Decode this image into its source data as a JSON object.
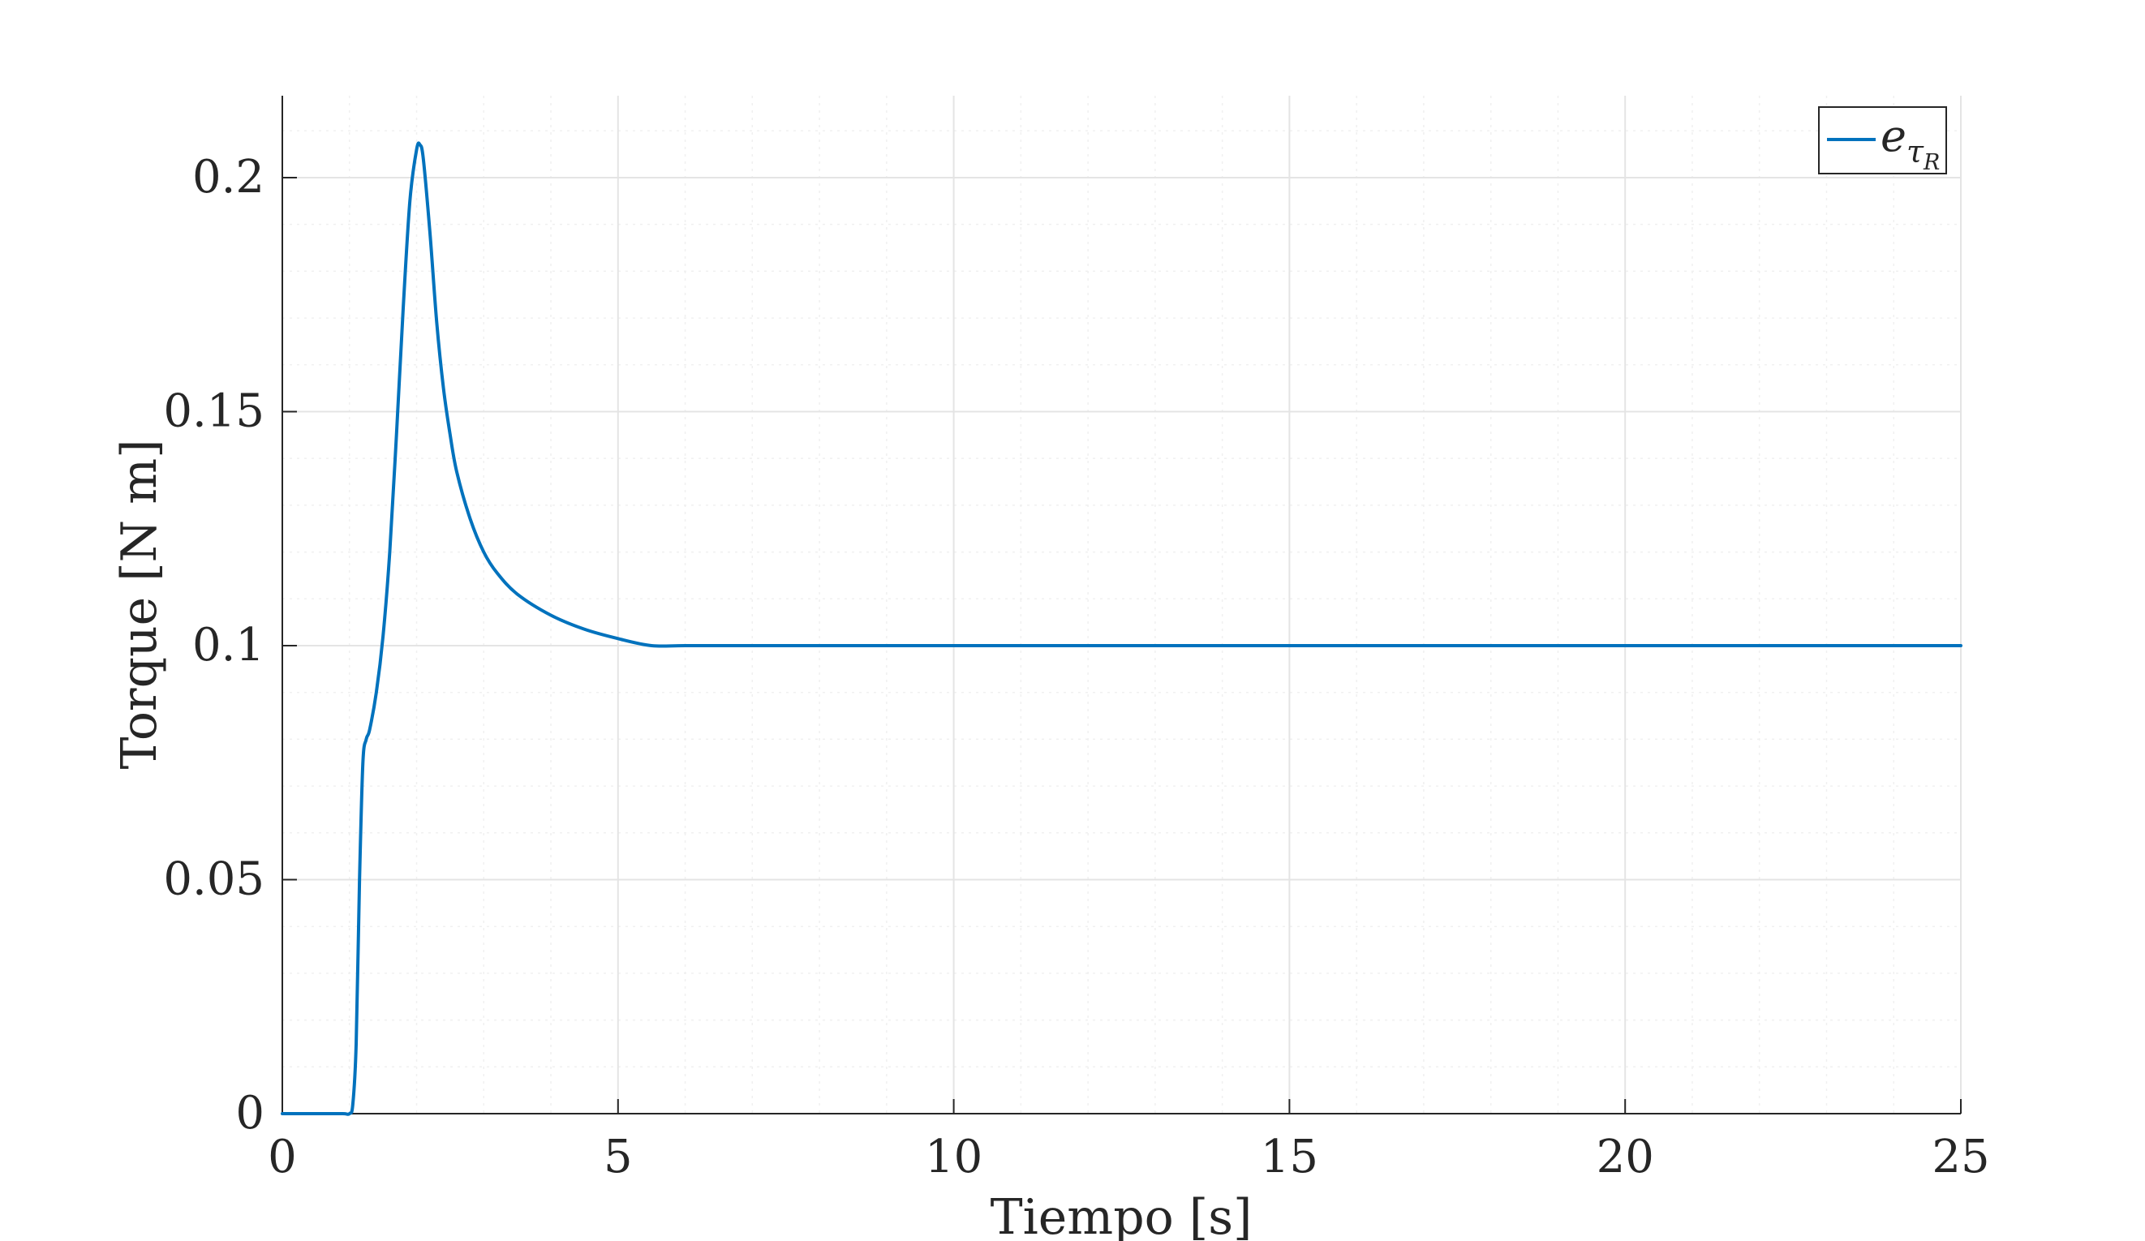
{
  "chart_data": {
    "type": "line",
    "xlabel": "Tiempo [s]",
    "ylabel": "Torque [N m]",
    "xlim": [
      0,
      25
    ],
    "ylim": [
      0,
      0.2175
    ],
    "xticks": [
      0,
      5,
      10,
      15,
      20,
      25
    ],
    "xtick_labels": [
      "0",
      "5",
      "10",
      "15",
      "20",
      "25"
    ],
    "yticks": [
      0,
      0.05,
      0.1,
      0.15,
      0.2
    ],
    "ytick_labels": [
      "0",
      "0.05",
      "0.1",
      "0.15",
      "0.2"
    ],
    "grid": true,
    "minor_grid": true,
    "legend_position": "top-right",
    "series": [
      {
        "legend": {
          "base": "e",
          "sub": "τ",
          "subsub": "R"
        },
        "color": "#0072BD",
        "x": [
          0,
          0.5,
          0.9,
          1.0,
          1.05,
          1.1,
          1.15,
          1.2,
          1.25,
          1.3,
          1.4,
          1.5,
          1.6,
          1.7,
          1.8,
          1.9,
          2.0,
          2.05,
          2.1,
          2.2,
          2.3,
          2.4,
          2.5,
          2.6,
          2.8,
          3.0,
          3.2,
          3.5,
          4.0,
          4.5,
          5.0,
          5.5,
          6.0,
          7.0,
          8.0,
          9.0,
          10.0,
          11.0,
          12.0,
          13.0,
          14.0,
          15.0,
          16.0,
          17.0,
          18.0,
          19.0,
          20.0,
          21.0,
          22.0,
          23.0,
          24.0,
          25.0
        ],
        "y": [
          0,
          0,
          0,
          0,
          0.002,
          0.015,
          0.05,
          0.075,
          0.08,
          0.082,
          0.09,
          0.102,
          0.12,
          0.145,
          0.172,
          0.195,
          0.206,
          0.207,
          0.204,
          0.188,
          0.169,
          0.155,
          0.145,
          0.137,
          0.127,
          0.12,
          0.1155,
          0.111,
          0.1065,
          0.1035,
          0.1015,
          0.1,
          0.1,
          0.1,
          0.1,
          0.1,
          0.1,
          0.1,
          0.1,
          0.1,
          0.1,
          0.1,
          0.1,
          0.1,
          0.1,
          0.1,
          0.1,
          0.1,
          0.1,
          0.1,
          0.1,
          0.1
        ]
      }
    ]
  }
}
